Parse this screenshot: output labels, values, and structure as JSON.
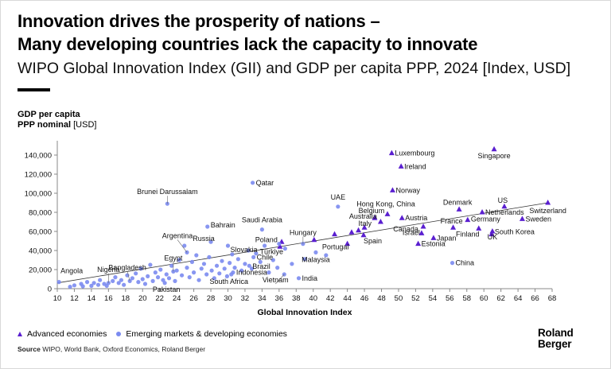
{
  "header": {
    "title_line1": "Innovation drives the prosperity of nations –",
    "title_line2": "Many developing countries lack the capacity to innovate",
    "subtitle": "WIPO Global Innovation Index (GII) and GDP per capita PPP, 2024 [Index, USD]"
  },
  "y_axis_label": {
    "line1": "GDP per capita",
    "line2_bold": "PPP nominal",
    "line2_unit": " [USD]"
  },
  "legend": {
    "advanced": "Advanced economies",
    "emerging": "Emerging markets & developing economies"
  },
  "source": {
    "label": "Source",
    "text": " WIPO, World Bank, Oxford Economics, Roland Berger"
  },
  "logo": {
    "line1": "Roland",
    "line2": "Berger"
  },
  "colors": {
    "advanced": "#5a1fd0",
    "emerging": "#7b8bf0",
    "axis": "#888888",
    "trend": "#333333"
  },
  "chart_data": {
    "type": "scatter",
    "title": "WIPO Global Innovation Index (GII) and GDP per capita PPP, 2024 [Index, USD]",
    "xlabel": "Global Innovation Index",
    "ylabel": "GDP per capita PPP nominal [USD]",
    "xlim": [
      10,
      68
    ],
    "ylim": [
      0,
      150000
    ],
    "x_ticks": [
      10,
      12,
      14,
      16,
      18,
      20,
      22,
      24,
      26,
      28,
      30,
      32,
      34,
      36,
      38,
      40,
      42,
      44,
      46,
      48,
      50,
      52,
      54,
      56,
      58,
      60,
      62,
      64,
      66,
      68
    ],
    "y_ticks": [
      0,
      20000,
      40000,
      60000,
      80000,
      100000,
      120000,
      140000
    ],
    "y_tick_labels": [
      "0",
      "20,000",
      "40,000",
      "60,000",
      "80,000",
      "100,000",
      "120,000",
      "140,000"
    ],
    "trendline": [
      [
        10,
        6000
      ],
      [
        67.5,
        90000
      ]
    ],
    "series": [
      {
        "name": "Advanced economies",
        "marker": "triangle",
        "points": [
          {
            "label": "Luxembourg",
            "x": 49.2,
            "y": 142000
          },
          {
            "label": "Singapore",
            "x": 61.2,
            "y": 146000
          },
          {
            "label": "Ireland",
            "x": 50.3,
            "y": 128000
          },
          {
            "label": "Norway",
            "x": 49.3,
            "y": 103000
          },
          {
            "label": "Switzerland",
            "x": 67.5,
            "y": 90000
          },
          {
            "label": "US",
            "x": 62.4,
            "y": 86000
          },
          {
            "label": "Denmark",
            "x": 57.1,
            "y": 83000
          },
          {
            "label": "Netherlands",
            "x": 59.8,
            "y": 80000
          },
          {
            "label": "Hong Kong, China",
            "x": 48.7,
            "y": 78000
          },
          {
            "label": "Belgium",
            "x": 47.2,
            "y": 74000
          },
          {
            "label": "Austria",
            "x": 50.4,
            "y": 74000
          },
          {
            "label": "Sweden",
            "x": 64.5,
            "y": 73000
          },
          {
            "label": "Germany",
            "x": 58.1,
            "y": 72000
          },
          {
            "label": "Australia",
            "x": 47.9,
            "y": 70000
          },
          {
            "label": "Canada",
            "x": 52.9,
            "y": 65000
          },
          {
            "label": "France",
            "x": 56.4,
            "y": 64000
          },
          {
            "label": "Finland",
            "x": 59.4,
            "y": 63000
          },
          {
            "label": "UK",
            "x": 61.0,
            "y": 60000
          },
          {
            "label": "South Korea",
            "x": 60.9,
            "y": 57000
          },
          {
            "label": "Italy",
            "x": 45.3,
            "y": 61000
          },
          {
            "label": "Israel",
            "x": 52.7,
            "y": 58000
          },
          {
            "label": "Spain",
            "x": 45.9,
            "y": 56000
          },
          {
            "label": "Japan",
            "x": 54.1,
            "y": 53000
          },
          {
            "label": "Portugal",
            "x": 44.0,
            "y": 47000
          },
          {
            "label": "Estonia",
            "x": 52.3,
            "y": 47000
          },
          {
            "label": "",
            "x": 40.1,
            "y": 51000
          },
          {
            "label": "",
            "x": 36.3,
            "y": 49000
          },
          {
            "label": "",
            "x": 36.1,
            "y": 44000
          },
          {
            "label": "",
            "x": 44.5,
            "y": 59000
          },
          {
            "label": "",
            "x": 46.0,
            "y": 64000
          },
          {
            "label": "",
            "x": 42.5,
            "y": 57000
          }
        ]
      },
      {
        "name": "Emerging markets & developing economies",
        "marker": "circle",
        "points": [
          {
            "label": "Qatar",
            "x": 32.9,
            "y": 111000
          },
          {
            "label": "Brunei Darussalam",
            "x": 22.9,
            "y": 89000
          },
          {
            "label": "UAE",
            "x": 42.9,
            "y": 86000
          },
          {
            "label": "Bahrain",
            "x": 27.6,
            "y": 65000
          },
          {
            "label": "Saudi Arabia",
            "x": 34.0,
            "y": 62000
          },
          {
            "label": "Russia",
            "x": 28.0,
            "y": 49000
          },
          {
            "label": "Poland",
            "x": 36.0,
            "y": 47000
          },
          {
            "label": "Hungary",
            "x": 38.8,
            "y": 47000
          },
          {
            "label": "Slovakia",
            "x": 30.0,
            "y": 45000
          },
          {
            "label": "Argentina",
            "x": 25.2,
            "y": 38000
          },
          {
            "label": "Türkiye",
            "x": 36.7,
            "y": 42000
          },
          {
            "label": "Malaysia",
            "x": 40.3,
            "y": 38000
          },
          {
            "label": "Chile",
            "x": 33.0,
            "y": 33000
          },
          {
            "label": "Brazil",
            "x": 32.5,
            "y": 24000
          },
          {
            "label": "Indonesia",
            "x": 30.6,
            "y": 17000
          },
          {
            "label": "Bangladesh",
            "x": 18.5,
            "y": 8000
          },
          {
            "label": "Egypt",
            "x": 23.6,
            "y": 18000
          },
          {
            "label": "Nigeria",
            "x": 16.0,
            "y": 6000
          },
          {
            "label": "Pakistan",
            "x": 22.6,
            "y": 6000
          },
          {
            "label": "South Africa",
            "x": 30.4,
            "y": 15000
          },
          {
            "label": "Vietnam",
            "x": 36.6,
            "y": 15000
          },
          {
            "label": "India",
            "x": 38.3,
            "y": 11000
          },
          {
            "label": "China",
            "x": 56.3,
            "y": 27000
          },
          {
            "label": "Angola",
            "x": 10.2,
            "y": 7000
          },
          {
            "label": "",
            "x": 11.5,
            "y": 2000
          },
          {
            "label": "",
            "x": 12.0,
            "y": 3500
          },
          {
            "label": "",
            "x": 12.8,
            "y": 5000
          },
          {
            "label": "",
            "x": 13.0,
            "y": 2500
          },
          {
            "label": "",
            "x": 13.5,
            "y": 7000
          },
          {
            "label": "",
            "x": 14.0,
            "y": 3000
          },
          {
            "label": "",
            "x": 14.3,
            "y": 6000
          },
          {
            "label": "",
            "x": 14.8,
            "y": 4000
          },
          {
            "label": "",
            "x": 15.0,
            "y": 9000
          },
          {
            "label": "",
            "x": 15.5,
            "y": 5000
          },
          {
            "label": "",
            "x": 15.8,
            "y": 3000
          },
          {
            "label": "",
            "x": 16.5,
            "y": 8000
          },
          {
            "label": "",
            "x": 16.8,
            "y": 12000
          },
          {
            "label": "",
            "x": 17.2,
            "y": 6000
          },
          {
            "label": "",
            "x": 17.5,
            "y": 9000
          },
          {
            "label": "",
            "x": 17.8,
            "y": 4000
          },
          {
            "label": "",
            "x": 18.2,
            "y": 14000
          },
          {
            "label": "",
            "x": 18.8,
            "y": 11000
          },
          {
            "label": "",
            "x": 19.2,
            "y": 16000
          },
          {
            "label": "",
            "x": 19.5,
            "y": 7000
          },
          {
            "label": "",
            "x": 19.8,
            "y": 21000
          },
          {
            "label": "",
            "x": 20.0,
            "y": 10000
          },
          {
            "label": "",
            "x": 20.3,
            "y": 5000
          },
          {
            "label": "",
            "x": 20.6,
            "y": 13000
          },
          {
            "label": "",
            "x": 20.9,
            "y": 25000
          },
          {
            "label": "",
            "x": 21.2,
            "y": 8000
          },
          {
            "label": "",
            "x": 21.5,
            "y": 17000
          },
          {
            "label": "",
            "x": 21.8,
            "y": 12000
          },
          {
            "label": "",
            "x": 22.1,
            "y": 20000
          },
          {
            "label": "",
            "x": 22.4,
            "y": 9000
          },
          {
            "label": "",
            "x": 22.8,
            "y": 15000
          },
          {
            "label": "",
            "x": 23.1,
            "y": 11000
          },
          {
            "label": "",
            "x": 23.4,
            "y": 24000
          },
          {
            "label": "",
            "x": 23.8,
            "y": 8000
          },
          {
            "label": "",
            "x": 24.0,
            "y": 19000
          },
          {
            "label": "",
            "x": 24.3,
            "y": 30000
          },
          {
            "label": "",
            "x": 24.6,
            "y": 14000
          },
          {
            "label": "",
            "x": 24.9,
            "y": 45000
          },
          {
            "label": "",
            "x": 25.2,
            "y": 22000
          },
          {
            "label": "",
            "x": 25.5,
            "y": 12000
          },
          {
            "label": "",
            "x": 25.8,
            "y": 28000
          },
          {
            "label": "",
            "x": 26.0,
            "y": 17000
          },
          {
            "label": "",
            "x": 26.3,
            "y": 35000
          },
          {
            "label": "",
            "x": 26.6,
            "y": 9000
          },
          {
            "label": "",
            "x": 26.9,
            "y": 21000
          },
          {
            "label": "",
            "x": 27.2,
            "y": 26000
          },
          {
            "label": "",
            "x": 27.5,
            "y": 15000
          },
          {
            "label": "",
            "x": 27.8,
            "y": 33000
          },
          {
            "label": "",
            "x": 28.1,
            "y": 19000
          },
          {
            "label": "",
            "x": 28.4,
            "y": 11000
          },
          {
            "label": "",
            "x": 28.7,
            "y": 24000
          },
          {
            "label": "",
            "x": 29.0,
            "y": 16000
          },
          {
            "label": "",
            "x": 29.3,
            "y": 29000
          },
          {
            "label": "",
            "x": 29.6,
            "y": 21000
          },
          {
            "label": "",
            "x": 29.9,
            "y": 13000
          },
          {
            "label": "",
            "x": 30.2,
            "y": 27000
          },
          {
            "label": "",
            "x": 30.5,
            "y": 36000
          },
          {
            "label": "",
            "x": 30.8,
            "y": 22000
          },
          {
            "label": "",
            "x": 31.2,
            "y": 31000
          },
          {
            "label": "",
            "x": 31.6,
            "y": 19000
          },
          {
            "label": "",
            "x": 32.0,
            "y": 26000
          },
          {
            "label": "",
            "x": 32.4,
            "y": 40000
          },
          {
            "label": "",
            "x": 32.8,
            "y": 21000
          },
          {
            "label": "",
            "x": 33.3,
            "y": 37000
          },
          {
            "label": "",
            "x": 33.8,
            "y": 28000
          },
          {
            "label": "",
            "x": 34.3,
            "y": 45000
          },
          {
            "label": "",
            "x": 34.8,
            "y": 17000
          },
          {
            "label": "",
            "x": 35.3,
            "y": 30000
          },
          {
            "label": "",
            "x": 35.8,
            "y": 22000
          },
          {
            "label": "",
            "x": 37.5,
            "y": 26000
          },
          {
            "label": "",
            "x": 39.0,
            "y": 31000
          },
          {
            "label": "",
            "x": 41.5,
            "y": 35000
          }
        ]
      }
    ]
  }
}
